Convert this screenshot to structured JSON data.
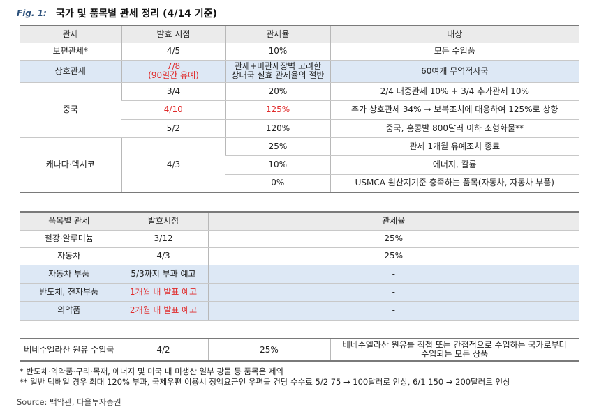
{
  "figure": {
    "label": "Fig. 1:",
    "title": "국가 및 품목별 관세 정리 (4/14 기준)"
  },
  "country_table": {
    "headers": [
      "관세",
      "발효 시점",
      "관세율",
      "대상"
    ],
    "rows": [
      {
        "name": "보편관세*",
        "date": "4/5",
        "rate": "10%",
        "target": "모든 수입품"
      },
      {
        "name": "상호관세",
        "date_line1": "7/8",
        "date_line2": "(90일간 유예)",
        "rate_line1": "관세+비관세장벽 고려한",
        "rate_line2": "상대국 실효 관세율의 절반",
        "target": "60여개 무역적자국"
      },
      {
        "name": "중국",
        "sub": [
          {
            "date": "3/4",
            "rate": "20%",
            "target": "2/4 대중관세 10% + 3/4 추가관세 10%"
          },
          {
            "date": "4/10",
            "rate": "125%",
            "target": "추가 상호관세 34% → 보복조치에 대응하여 125%로 상향"
          },
          {
            "date": "5/2",
            "rate": "120%",
            "target": "중국, 홍콩발 800달러 이하 소형화물**"
          }
        ]
      },
      {
        "name": "캐나다·멕시코",
        "date": "4/3",
        "sub": [
          {
            "rate": "25%",
            "target": "관세 1개월 유예조치 종료"
          },
          {
            "rate": "10%",
            "target": "에너지, 칼륨"
          },
          {
            "rate": "0%",
            "target": "USMCA 원산지기준 충족하는 품목(자동차, 자동차 부품)"
          }
        ]
      }
    ]
  },
  "item_table": {
    "headers": [
      "품목별 관세",
      "발효시점",
      "관세율"
    ],
    "rows": [
      {
        "name": "철강·알루미늄",
        "date": "3/12",
        "rate": "25%"
      },
      {
        "name": "자동차",
        "date": "4/3",
        "rate": "25%"
      },
      {
        "name": "자동차 부품",
        "date": "5/3까지 부과 예고",
        "rate": "-"
      },
      {
        "name": "반도체, 전자부품",
        "date": "1개월 내 발표 예고",
        "rate": "-"
      },
      {
        "name": "의약품",
        "date": "2개월 내 발표 예고",
        "rate": "-"
      }
    ],
    "venezuela": {
      "name": "베네수엘라산 원유 수입국",
      "date": "4/2",
      "rate": "25%",
      "target_line1": "베네수엘라산 원유를 직접 또는 간접적으로 수입하는 국가로부터",
      "target_line2": "수입되는 모든 상품"
    }
  },
  "notes": [
    "* 반도체·의약품·구리·목재, 에너지 및 미국 내 미생산 일부 광물 등 품목은 제외",
    "** 일반 택배일 경우 최대 120% 부과, 국제우편 이용시 정액요금인 우편물 건당 수수료 5/2 75 → 100달러로 인상, 6/1 150 → 200달러로 인상"
  ],
  "source": "Source: 백악관, 다올투자증권",
  "colors": {
    "highlight": "#dde8f5",
    "header_bg": "#ebebeb",
    "red_text": "#e02a2a",
    "fig_label": "#2a4f7a"
  }
}
